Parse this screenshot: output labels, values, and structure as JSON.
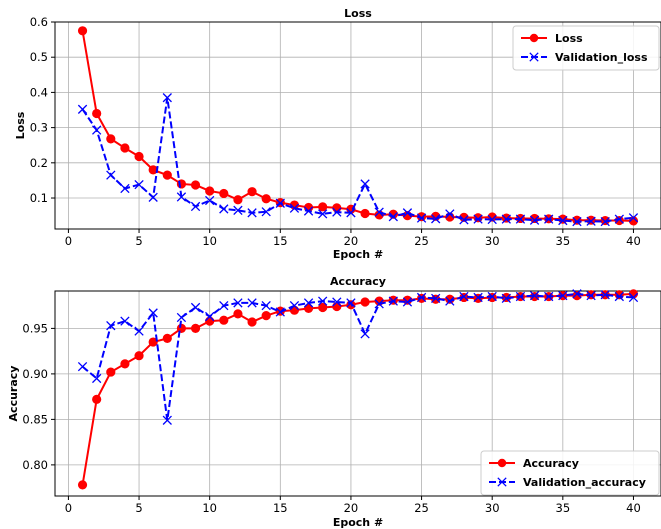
{
  "chart_data": [
    {
      "type": "line",
      "title": "Loss",
      "xlabel": "Epoch #",
      "ylabel": "Loss",
      "xlim": [
        -0.95,
        41.95
      ],
      "ylim": [
        0.012,
        0.6
      ],
      "xticks": [
        "0",
        "5",
        "10",
        "15",
        "20",
        "25",
        "30",
        "35",
        "40"
      ],
      "yticks": [
        "0.1",
        "0.2",
        "0.3",
        "0.4",
        "0.5",
        "0.6"
      ],
      "grid": true,
      "legend_position": "top-right",
      "x": [
        1,
        2,
        3,
        4,
        5,
        6,
        7,
        8,
        9,
        10,
        11,
        12,
        13,
        14,
        15,
        16,
        17,
        18,
        19,
        20,
        21,
        22,
        23,
        24,
        25,
        26,
        27,
        28,
        29,
        30,
        31,
        32,
        33,
        34,
        35,
        36,
        37,
        38,
        39,
        40
      ],
      "series": [
        {
          "name": "Loss",
          "color": "#ff0000",
          "style": "solid",
          "marker": "circle",
          "values": [
            0.575,
            0.34,
            0.268,
            0.242,
            0.218,
            0.18,
            0.165,
            0.14,
            0.137,
            0.12,
            0.113,
            0.095,
            0.118,
            0.098,
            0.087,
            0.08,
            0.073,
            0.075,
            0.072,
            0.068,
            0.056,
            0.052,
            0.054,
            0.05,
            0.047,
            0.048,
            0.046,
            0.045,
            0.044,
            0.046,
            0.043,
            0.042,
            0.042,
            0.041,
            0.04,
            0.037,
            0.037,
            0.036,
            0.036,
            0.035
          ]
        },
        {
          "name": "Validation_loss",
          "color": "#0000ff",
          "style": "dashed",
          "marker": "x",
          "values": [
            0.352,
            0.293,
            0.165,
            0.127,
            0.138,
            0.102,
            0.385,
            0.103,
            0.076,
            0.093,
            0.069,
            0.065,
            0.058,
            0.061,
            0.085,
            0.071,
            0.063,
            0.055,
            0.06,
            0.058,
            0.14,
            0.06,
            0.047,
            0.058,
            0.043,
            0.041,
            0.055,
            0.038,
            0.04,
            0.039,
            0.04,
            0.04,
            0.037,
            0.04,
            0.036,
            0.033,
            0.034,
            0.033,
            0.04,
            0.044
          ]
        }
      ]
    },
    {
      "type": "line",
      "title": "Accuracy",
      "xlabel": "Epoch #",
      "ylabel": "Accuracy",
      "xlim": [
        -0.95,
        41.95
      ],
      "ylim": [
        0.7658,
        0.9911
      ],
      "xticks": [
        "0",
        "5",
        "10",
        "15",
        "20",
        "25",
        "30",
        "35",
        "40"
      ],
      "yticks": [
        "0.80",
        "0.85",
        "0.90",
        "0.95"
      ],
      "grid": true,
      "legend_position": "bottom-right",
      "x": [
        1,
        2,
        3,
        4,
        5,
        6,
        7,
        8,
        9,
        10,
        11,
        12,
        13,
        14,
        15,
        16,
        17,
        18,
        19,
        20,
        21,
        22,
        23,
        24,
        25,
        26,
        27,
        28,
        29,
        30,
        31,
        32,
        33,
        34,
        35,
        36,
        37,
        38,
        39,
        40
      ],
      "series": [
        {
          "name": "Accuracy",
          "color": "#ff0000",
          "style": "solid",
          "marker": "circle",
          "values": [
            0.778,
            0.872,
            0.902,
            0.911,
            0.92,
            0.935,
            0.939,
            0.95,
            0.95,
            0.958,
            0.959,
            0.966,
            0.957,
            0.964,
            0.969,
            0.97,
            0.972,
            0.973,
            0.974,
            0.976,
            0.979,
            0.98,
            0.981,
            0.981,
            0.983,
            0.982,
            0.982,
            0.984,
            0.983,
            0.984,
            0.984,
            0.985,
            0.985,
            0.985,
            0.986,
            0.986,
            0.987,
            0.987,
            0.987,
            0.988
          ]
        },
        {
          "name": "Validation_accuracy",
          "color": "#0000ff",
          "style": "dashed",
          "marker": "x",
          "values": [
            0.908,
            0.895,
            0.953,
            0.958,
            0.947,
            0.967,
            0.849,
            0.962,
            0.973,
            0.963,
            0.975,
            0.978,
            0.978,
            0.975,
            0.968,
            0.975,
            0.978,
            0.98,
            0.979,
            0.978,
            0.944,
            0.977,
            0.98,
            0.979,
            0.984,
            0.983,
            0.98,
            0.985,
            0.984,
            0.985,
            0.983,
            0.985,
            0.986,
            0.985,
            0.986,
            0.988,
            0.986,
            0.987,
            0.985,
            0.984
          ]
        }
      ]
    }
  ]
}
